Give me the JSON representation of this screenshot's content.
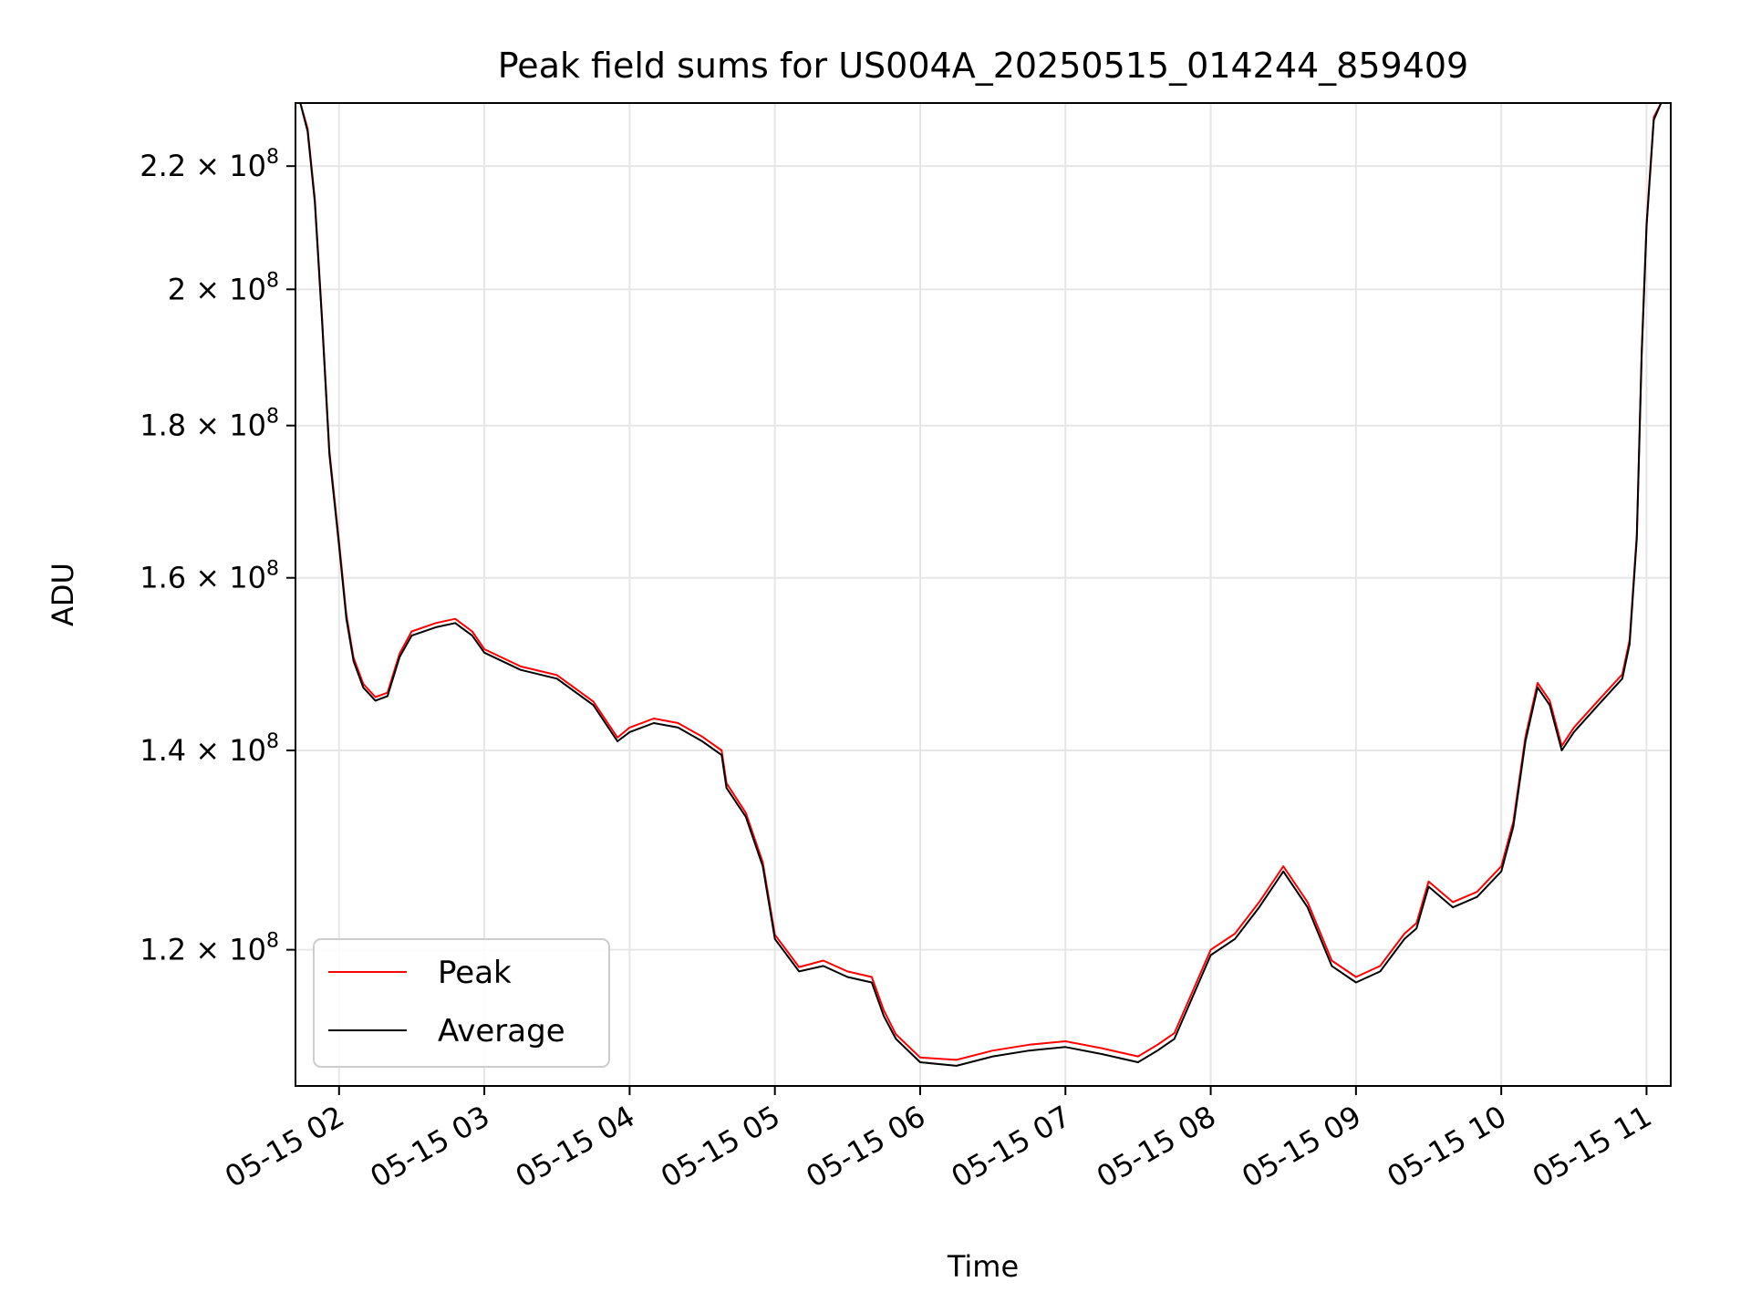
{
  "chart_data": {
    "type": "line",
    "title": "Peak field sums for US004A_20250515_014244_859409",
    "xlabel": "Time",
    "ylabel": "ADU",
    "y_scale": "log",
    "ylim": [
      108000000,
      231000000
    ],
    "grid": true,
    "legend_position": "lower-left",
    "x_ticks": [
      {
        "time": "2025-05-15T02:00",
        "label": "05-15 02"
      },
      {
        "time": "2025-05-15T03:00",
        "label": "05-15 03"
      },
      {
        "time": "2025-05-15T04:00",
        "label": "05-15 04"
      },
      {
        "time": "2025-05-15T05:00",
        "label": "05-15 05"
      },
      {
        "time": "2025-05-15T06:00",
        "label": "05-15 06"
      },
      {
        "time": "2025-05-15T07:00",
        "label": "05-15 07"
      },
      {
        "time": "2025-05-15T08:00",
        "label": "05-15 08"
      },
      {
        "time": "2025-05-15T09:00",
        "label": "05-15 09"
      },
      {
        "time": "2025-05-15T10:00",
        "label": "05-15 10"
      },
      {
        "time": "2025-05-15T11:00",
        "label": "05-15 11"
      }
    ],
    "x_range": [
      "2025-05-15T01:42",
      "2025-05-15T11:10"
    ],
    "y_ticks": [
      {
        "value": 120000000,
        "mantissa": "1.2",
        "exp": "8"
      },
      {
        "value": 140000000,
        "mantissa": "1.4",
        "exp": "8"
      },
      {
        "value": 160000000,
        "mantissa": "1.6",
        "exp": "8"
      },
      {
        "value": 180000000,
        "mantissa": "1.8",
        "exp": "8"
      },
      {
        "value": 200000000,
        "mantissa": "2",
        "exp": "8"
      },
      {
        "value": 220000000,
        "mantissa": "2.2",
        "exp": "8"
      }
    ],
    "series": [
      {
        "name": "Average",
        "color": "#000000",
        "times": [
          "2025-05-15T01:42",
          "2025-05-15T01:44",
          "2025-05-15T01:47",
          "2025-05-15T01:50",
          "2025-05-15T01:53",
          "2025-05-15T01:56",
          "2025-05-15T02:00",
          "2025-05-15T02:03",
          "2025-05-15T02:06",
          "2025-05-15T02:10",
          "2025-05-15T02:15",
          "2025-05-15T02:20",
          "2025-05-15T02:25",
          "2025-05-15T02:30",
          "2025-05-15T02:40",
          "2025-05-15T02:48",
          "2025-05-15T02:55",
          "2025-05-15T03:00",
          "2025-05-15T03:15",
          "2025-05-15T03:30",
          "2025-05-15T03:45",
          "2025-05-15T03:55",
          "2025-05-15T04:00",
          "2025-05-15T04:10",
          "2025-05-15T04:20",
          "2025-05-15T04:30",
          "2025-05-15T04:38",
          "2025-05-15T04:40",
          "2025-05-15T04:48",
          "2025-05-15T04:55",
          "2025-05-15T05:00",
          "2025-05-15T05:10",
          "2025-05-15T05:20",
          "2025-05-15T05:30",
          "2025-05-15T05:40",
          "2025-05-15T05:45",
          "2025-05-15T05:50",
          "2025-05-15T06:00",
          "2025-05-15T06:15",
          "2025-05-15T06:30",
          "2025-05-15T06:45",
          "2025-05-15T07:00",
          "2025-05-15T07:15",
          "2025-05-15T07:30",
          "2025-05-15T07:38",
          "2025-05-15T07:45",
          "2025-05-15T08:00",
          "2025-05-15T08:10",
          "2025-05-15T08:20",
          "2025-05-15T08:30",
          "2025-05-15T08:40",
          "2025-05-15T08:50",
          "2025-05-15T09:00",
          "2025-05-15T09:10",
          "2025-05-15T09:15",
          "2025-05-15T09:20",
          "2025-05-15T09:25",
          "2025-05-15T09:30",
          "2025-05-15T09:40",
          "2025-05-15T09:50",
          "2025-05-15T10:00",
          "2025-05-15T10:05",
          "2025-05-15T10:10",
          "2025-05-15T10:15",
          "2025-05-15T10:20",
          "2025-05-15T10:25",
          "2025-05-15T10:30",
          "2025-05-15T10:40",
          "2025-05-15T10:50",
          "2025-05-15T10:53",
          "2025-05-15T10:56",
          "2025-05-15T10:58",
          "2025-05-15T11:00",
          "2025-05-15T11:03",
          "2025-05-15T11:06"
        ],
        "values": [
          231000000,
          231000000,
          226000000,
          214000000,
          195000000,
          176000000,
          164000000,
          155000000,
          150000000,
          147000000,
          145500000,
          146000000,
          150500000,
          153000000,
          154000000,
          154500000,
          153000000,
          151000000,
          149000000,
          148000000,
          145000000,
          141000000,
          142000000,
          143000000,
          142500000,
          141000000,
          139500000,
          136000000,
          133000000,
          128000000,
          121000000,
          118000000,
          118500000,
          117500000,
          117000000,
          114000000,
          112000000,
          110000000,
          109700000,
          110500000,
          111000000,
          111300000,
          110700000,
          110000000,
          111000000,
          112000000,
          119500000,
          121000000,
          124000000,
          127500000,
          124000000,
          118500000,
          117000000,
          118000000,
          119500000,
          121000000,
          122000000,
          126000000,
          124000000,
          125000000,
          127500000,
          132000000,
          141000000,
          147000000,
          145000000,
          140000000,
          142000000,
          145000000,
          148000000,
          152000000,
          165000000,
          190000000,
          210000000,
          228000000,
          231000000
        ]
      },
      {
        "name": "Peak",
        "color": "#ff0000",
        "times": [
          "2025-05-15T01:42",
          "2025-05-15T01:44",
          "2025-05-15T01:47",
          "2025-05-15T01:50",
          "2025-05-15T01:53",
          "2025-05-15T01:56",
          "2025-05-15T02:00",
          "2025-05-15T02:03",
          "2025-05-15T02:06",
          "2025-05-15T02:10",
          "2025-05-15T02:15",
          "2025-05-15T02:20",
          "2025-05-15T02:25",
          "2025-05-15T02:30",
          "2025-05-15T02:40",
          "2025-05-15T02:48",
          "2025-05-15T02:55",
          "2025-05-15T03:00",
          "2025-05-15T03:15",
          "2025-05-15T03:30",
          "2025-05-15T03:45",
          "2025-05-15T03:55",
          "2025-05-15T04:00",
          "2025-05-15T04:10",
          "2025-05-15T04:20",
          "2025-05-15T04:30",
          "2025-05-15T04:38",
          "2025-05-15T04:40",
          "2025-05-15T04:48",
          "2025-05-15T04:55",
          "2025-05-15T05:00",
          "2025-05-15T05:10",
          "2025-05-15T05:20",
          "2025-05-15T05:30",
          "2025-05-15T05:40",
          "2025-05-15T05:45",
          "2025-05-15T05:50",
          "2025-05-15T06:00",
          "2025-05-15T06:15",
          "2025-05-15T06:30",
          "2025-05-15T06:45",
          "2025-05-15T07:00",
          "2025-05-15T07:15",
          "2025-05-15T07:30",
          "2025-05-15T07:38",
          "2025-05-15T07:45",
          "2025-05-15T08:00",
          "2025-05-15T08:10",
          "2025-05-15T08:20",
          "2025-05-15T08:30",
          "2025-05-15T08:40",
          "2025-05-15T08:50",
          "2025-05-15T09:00",
          "2025-05-15T09:10",
          "2025-05-15T09:15",
          "2025-05-15T09:20",
          "2025-05-15T09:25",
          "2025-05-15T09:30",
          "2025-05-15T09:40",
          "2025-05-15T09:50",
          "2025-05-15T10:00",
          "2025-05-15T10:05",
          "2025-05-15T10:10",
          "2025-05-15T10:15",
          "2025-05-15T10:20",
          "2025-05-15T10:25",
          "2025-05-15T10:30",
          "2025-05-15T10:40",
          "2025-05-15T10:50",
          "2025-05-15T10:53",
          "2025-05-15T10:56",
          "2025-05-15T10:58",
          "2025-05-15T11:00",
          "2025-05-15T11:03",
          "2025-05-15T11:06"
        ],
        "values": [
          231000000,
          231000000,
          226500000,
          214500000,
          195500000,
          176500000,
          164500000,
          155500000,
          150400000,
          147400000,
          145900000,
          146400000,
          150900000,
          153500000,
          154500000,
          155000000,
          153500000,
          151400000,
          149400000,
          148400000,
          145400000,
          141400000,
          142500000,
          143500000,
          143000000,
          141500000,
          140000000,
          136500000,
          133400000,
          128400000,
          121400000,
          118400000,
          119000000,
          118000000,
          117500000,
          114500000,
          112400000,
          110400000,
          110200000,
          111000000,
          111500000,
          111800000,
          111200000,
          110500000,
          111500000,
          112500000,
          120000000,
          121500000,
          124500000,
          128000000,
          124500000,
          119000000,
          117500000,
          118500000,
          120000000,
          121500000,
          122500000,
          126500000,
          124500000,
          125500000,
          128000000,
          132500000,
          141500000,
          147500000,
          145500000,
          140500000,
          142500000,
          145500000,
          148500000,
          152500000,
          165500000,
          190500000,
          210500000,
          228500000,
          231000000
        ]
      }
    ]
  }
}
